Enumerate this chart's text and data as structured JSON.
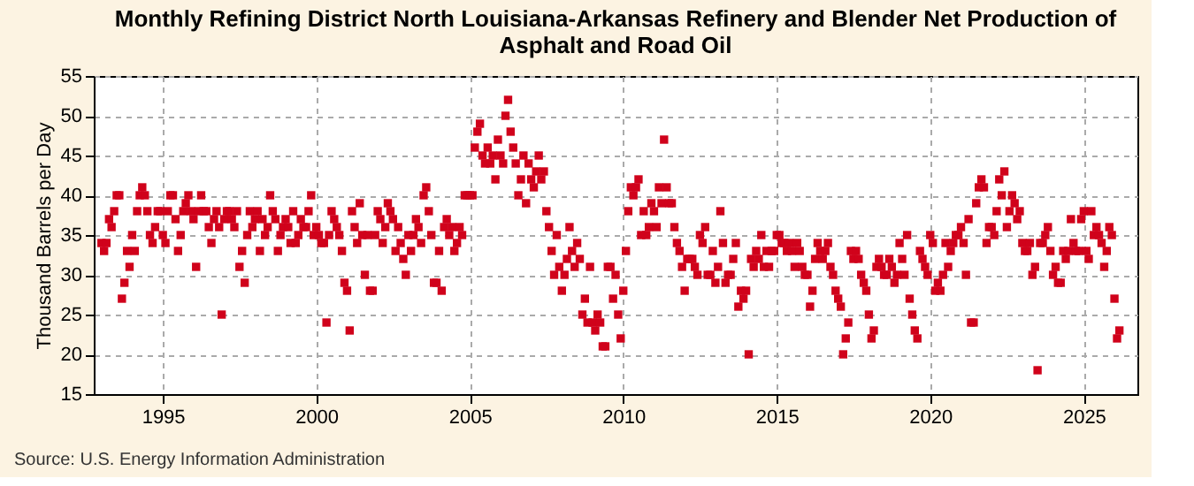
{
  "chart_data": {
    "type": "scatter",
    "title": "Monthly Refining District North Louisiana-Arkansas Refinery and Blender Net Production of Asphalt and Road Oil",
    "ylabel": "Thousand Barrels per Day",
    "annotations": [
      "Source: U.S. Energy Information Administration"
    ],
    "x": [
      "1993-01",
      "1993-02",
      "1993-03",
      "1993-04",
      "1993-05",
      "1993-06",
      "1993-07",
      "1993-08",
      "1993-09",
      "1993-10",
      "1993-11",
      "1993-12",
      "1994-01",
      "1994-02",
      "1994-03",
      "1994-04",
      "1994-05",
      "1994-06",
      "1994-07",
      "1994-08",
      "1994-09",
      "1994-10",
      "1994-11",
      "1994-12",
      "1995-01",
      "1995-02",
      "1995-03",
      "1995-04",
      "1995-05",
      "1995-06",
      "1995-07",
      "1995-08",
      "1995-09",
      "1995-10",
      "1995-11",
      "1995-12",
      "1996-01",
      "1996-02",
      "1996-03",
      "1996-04",
      "1996-05",
      "1996-06",
      "1996-07",
      "1996-08",
      "1996-09",
      "1996-10",
      "1996-11",
      "1996-12",
      "1997-01",
      "1997-02",
      "1997-03",
      "1997-04",
      "1997-05",
      "1997-06",
      "1997-07",
      "1997-08",
      "1997-09",
      "1997-10",
      "1997-11",
      "1997-12",
      "1998-01",
      "1998-02",
      "1998-03",
      "1998-04",
      "1998-05",
      "1998-06",
      "1998-07",
      "1998-08",
      "1998-09",
      "1998-10",
      "1998-11",
      "1998-12",
      "1999-01",
      "1999-02",
      "1999-03",
      "1999-04",
      "1999-05",
      "1999-06",
      "1999-07",
      "1999-08",
      "1999-09",
      "1999-10",
      "1999-11",
      "1999-12",
      "2000-01",
      "2000-02",
      "2000-03",
      "2000-04",
      "2000-05",
      "2000-06",
      "2000-07",
      "2000-08",
      "2000-09",
      "2000-10",
      "2000-11",
      "2000-12",
      "2001-01",
      "2001-02",
      "2001-03",
      "2001-04",
      "2001-05",
      "2001-06",
      "2001-07",
      "2001-08",
      "2001-09",
      "2001-10",
      "2001-11",
      "2001-12",
      "2002-01",
      "2002-02",
      "2002-03",
      "2002-04",
      "2002-05",
      "2002-06",
      "2002-07",
      "2002-08",
      "2002-09",
      "2002-10",
      "2002-11",
      "2002-12",
      "2003-01",
      "2003-02",
      "2003-03",
      "2003-04",
      "2003-05",
      "2003-06",
      "2003-07",
      "2003-08",
      "2003-09",
      "2003-10",
      "2003-11",
      "2003-12",
      "2004-01",
      "2004-02",
      "2004-03",
      "2004-04",
      "2004-05",
      "2004-06",
      "2004-07",
      "2004-08",
      "2004-09",
      "2004-10",
      "2004-11",
      "2004-12",
      "2005-01",
      "2005-02",
      "2005-03",
      "2005-04",
      "2005-05",
      "2005-06",
      "2005-07",
      "2005-08",
      "2005-09",
      "2005-10",
      "2005-11",
      "2005-12",
      "2006-01",
      "2006-02",
      "2006-03",
      "2006-04",
      "2006-05",
      "2006-06",
      "2006-07",
      "2006-08",
      "2006-09",
      "2006-10",
      "2006-11",
      "2006-12",
      "2007-01",
      "2007-02",
      "2007-03",
      "2007-04",
      "2007-05",
      "2007-06",
      "2007-07",
      "2007-08",
      "2007-09",
      "2007-10",
      "2007-11",
      "2007-12",
      "2008-01",
      "2008-02",
      "2008-03",
      "2008-04",
      "2008-05",
      "2008-06",
      "2008-07",
      "2008-08",
      "2008-09",
      "2008-10",
      "2008-11",
      "2008-12",
      "2009-01",
      "2009-02",
      "2009-03",
      "2009-04",
      "2009-05",
      "2009-06",
      "2009-07",
      "2009-08",
      "2009-09",
      "2009-10",
      "2009-11",
      "2009-12",
      "2010-01",
      "2010-02",
      "2010-03",
      "2010-04",
      "2010-05",
      "2010-06",
      "2010-07",
      "2010-08",
      "2010-09",
      "2010-10",
      "2010-11",
      "2010-12",
      "2011-01",
      "2011-02",
      "2011-03",
      "2011-04",
      "2011-05",
      "2011-06",
      "2011-07",
      "2011-08",
      "2011-09",
      "2011-10",
      "2011-11",
      "2011-12",
      "2012-01",
      "2012-02",
      "2012-03",
      "2012-04",
      "2012-05",
      "2012-06",
      "2012-07",
      "2012-08",
      "2012-09",
      "2012-10",
      "2012-11",
      "2012-12",
      "2013-01",
      "2013-02",
      "2013-03",
      "2013-04",
      "2013-05",
      "2013-06",
      "2013-07",
      "2013-08",
      "2013-09",
      "2013-10",
      "2013-11",
      "2013-12",
      "2014-01",
      "2014-02",
      "2014-03",
      "2014-04",
      "2014-05",
      "2014-06",
      "2014-07",
      "2014-08",
      "2014-09",
      "2014-10",
      "2014-11",
      "2014-12",
      "2015-01",
      "2015-02",
      "2015-03",
      "2015-04",
      "2015-05",
      "2015-06",
      "2015-07",
      "2015-08",
      "2015-09",
      "2015-10",
      "2015-11",
      "2015-12",
      "2016-01",
      "2016-02",
      "2016-03",
      "2016-04",
      "2016-05",
      "2016-06",
      "2016-07",
      "2016-08",
      "2016-09",
      "2016-10",
      "2016-11",
      "2016-12",
      "2017-01",
      "2017-02",
      "2017-03",
      "2017-04",
      "2017-05",
      "2017-06",
      "2017-07",
      "2017-08",
      "2017-09",
      "2017-10",
      "2017-11",
      "2017-12",
      "2018-01",
      "2018-02",
      "2018-03",
      "2018-04",
      "2018-05",
      "2018-06",
      "2018-07",
      "2018-08",
      "2018-09",
      "2018-10",
      "2018-11",
      "2018-12",
      "2019-01",
      "2019-02",
      "2019-03",
      "2019-04",
      "2019-05",
      "2019-06",
      "2019-07",
      "2019-08",
      "2019-09",
      "2019-10",
      "2019-11",
      "2019-12",
      "2020-01",
      "2020-02",
      "2020-03",
      "2020-04",
      "2020-05",
      "2020-06",
      "2020-07",
      "2020-08",
      "2020-09",
      "2020-10",
      "2020-11",
      "2020-12",
      "2021-01",
      "2021-02",
      "2021-03",
      "2021-04",
      "2021-05",
      "2021-06",
      "2021-07",
      "2021-08",
      "2021-09",
      "2021-10",
      "2021-11",
      "2021-12",
      "2022-01",
      "2022-02",
      "2022-03",
      "2022-04",
      "2022-05",
      "2022-06",
      "2022-07",
      "2022-08",
      "2022-09",
      "2022-10",
      "2022-11",
      "2022-12",
      "2023-01",
      "2023-02",
      "2023-03",
      "2023-04",
      "2023-05",
      "2023-06",
      "2023-07",
      "2023-08",
      "2023-09",
      "2023-10",
      "2023-11",
      "2023-12",
      "2024-01",
      "2024-02",
      "2024-03",
      "2024-04",
      "2024-05",
      "2024-06",
      "2024-07",
      "2024-08",
      "2024-09",
      "2024-10",
      "2024-11",
      "2024-12",
      "2025-01",
      "2025-02",
      "2025-03",
      "2025-04",
      "2025-05",
      "2025-06",
      "2025-07",
      "2025-08",
      "2025-09",
      "2025-10",
      "2025-11",
      "2025-12",
      "2026-01",
      "2026-02",
      "2026-03"
    ],
    "series": [
      {
        "color": "#d0021b",
        "values": [
          34,
          33,
          34,
          37,
          36,
          38,
          40,
          40,
          27,
          29,
          33,
          31,
          35,
          33,
          38,
          40,
          41,
          40,
          38,
          35,
          34,
          36,
          38,
          38,
          35,
          34,
          38,
          40,
          40,
          37,
          33,
          35,
          38,
          39,
          40,
          38,
          37,
          31,
          38,
          40,
          38,
          38,
          36,
          34,
          37,
          38,
          36,
          25,
          37,
          38,
          38,
          37,
          36,
          38,
          31,
          33,
          29,
          35,
          38,
          36,
          37,
          38,
          33,
          37,
          35,
          36,
          40,
          38,
          37,
          33,
          35,
          36,
          37,
          36,
          34,
          38,
          34,
          35,
          37,
          36,
          36,
          38,
          40,
          35,
          36,
          35,
          34,
          34,
          24,
          35,
          38,
          37,
          36,
          35,
          33,
          29,
          28,
          23,
          38,
          36,
          34,
          39,
          35,
          30,
          35,
          28,
          28,
          35,
          38,
          37,
          34,
          36,
          39,
          38,
          37,
          33,
          36,
          34,
          32,
          30,
          35,
          33,
          35,
          37,
          36,
          34,
          40,
          41,
          38,
          35,
          29,
          29,
          33,
          28,
          36,
          37,
          35,
          36,
          33,
          34,
          36,
          35,
          40,
          40,
          40,
          40,
          46,
          48,
          49,
          45,
          44,
          46,
          44,
          45,
          42,
          47,
          45,
          44,
          50,
          52,
          48,
          46,
          44,
          40,
          42,
          45,
          39,
          44,
          42,
          41,
          43,
          45,
          42,
          43,
          38,
          36,
          33,
          30,
          35,
          31,
          28,
          30,
          32,
          36,
          33,
          31,
          34,
          32,
          25,
          27,
          24,
          31,
          24,
          23,
          25,
          24,
          21,
          21,
          31,
          31,
          27,
          30,
          25,
          22,
          28,
          33,
          38,
          41,
          40,
          41,
          42,
          35,
          38,
          35,
          36,
          39,
          38,
          36,
          41,
          39,
          47,
          41,
          39,
          39,
          36,
          34,
          33,
          31,
          28,
          32,
          32,
          32,
          31,
          30,
          35,
          34,
          36,
          30,
          30,
          33,
          29,
          31,
          38,
          34,
          29,
          30,
          30,
          32,
          34,
          26,
          28,
          27,
          28,
          20,
          32,
          31,
          33,
          32,
          35,
          31,
          33,
          31,
          33,
          33,
          35,
          35,
          34,
          34,
          33,
          34,
          33,
          31,
          34,
          33,
          31,
          30,
          30,
          26,
          28,
          32,
          34,
          33,
          32,
          33,
          34,
          31,
          30,
          28,
          27,
          26,
          20,
          22,
          24,
          33,
          32,
          33,
          32,
          30,
          29,
          28,
          25,
          22,
          23,
          31,
          32,
          31,
          30,
          30,
          32,
          31,
          29,
          30,
          34,
          32,
          30,
          35,
          27,
          25,
          23,
          22,
          33,
          32,
          31,
          30,
          35,
          34,
          28,
          29,
          28,
          30,
          34,
          31,
          33,
          34,
          35,
          35,
          36,
          34,
          30,
          37,
          24,
          24,
          39,
          41,
          42,
          41,
          34,
          36,
          36,
          35,
          38,
          42,
          40,
          43,
          36,
          38,
          40,
          39,
          37,
          38,
          34,
          33,
          33,
          34,
          30,
          31,
          18,
          34,
          34,
          35,
          36,
          33,
          30,
          31,
          29,
          29,
          33,
          32,
          33,
          37,
          34,
          33,
          33,
          37,
          38,
          33,
          32,
          38,
          35,
          36,
          35,
          34,
          31,
          33,
          36,
          35,
          27,
          22,
          23
        ]
      }
    ],
    "xlim": [
      "1992-10",
      "2026-10"
    ],
    "xticks": [
      {
        "value": "1995-01",
        "label": "1995"
      },
      {
        "value": "2000-01",
        "label": "2000"
      },
      {
        "value": "2005-01",
        "label": "2005"
      },
      {
        "value": "2010-01",
        "label": "2010"
      },
      {
        "value": "2015-01",
        "label": "2015"
      },
      {
        "value": "2020-01",
        "label": "2020"
      },
      {
        "value": "2025-01",
        "label": "2025"
      }
    ],
    "ylim": [
      15,
      55
    ],
    "yticks": [
      15,
      20,
      25,
      30,
      35,
      40,
      45,
      50,
      55
    ],
    "grid": true,
    "marker": "square"
  }
}
